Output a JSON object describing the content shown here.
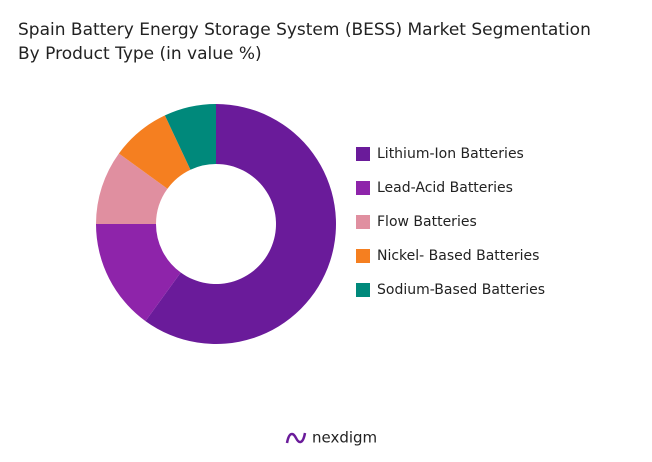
{
  "chart_data": {
    "type": "donut",
    "title": "Spain Battery Energy Storage System (BESS) Market Segmentation",
    "subtitle": "By Product Type (in value %)",
    "categories": [
      "Lithium-Ion Batteries",
      "Lead-Acid Batteries",
      "Flow Batteries",
      "Nickel- Based Batteries",
      "Sodium-Based Batteries"
    ],
    "values": [
      60,
      15,
      10,
      8,
      7
    ],
    "colors": [
      "#6a1b9a",
      "#8e24aa",
      "#e08fa0",
      "#f57f20",
      "#00897b"
    ],
    "legend": "right"
  },
  "footer": {
    "logo": "nexdigm"
  }
}
